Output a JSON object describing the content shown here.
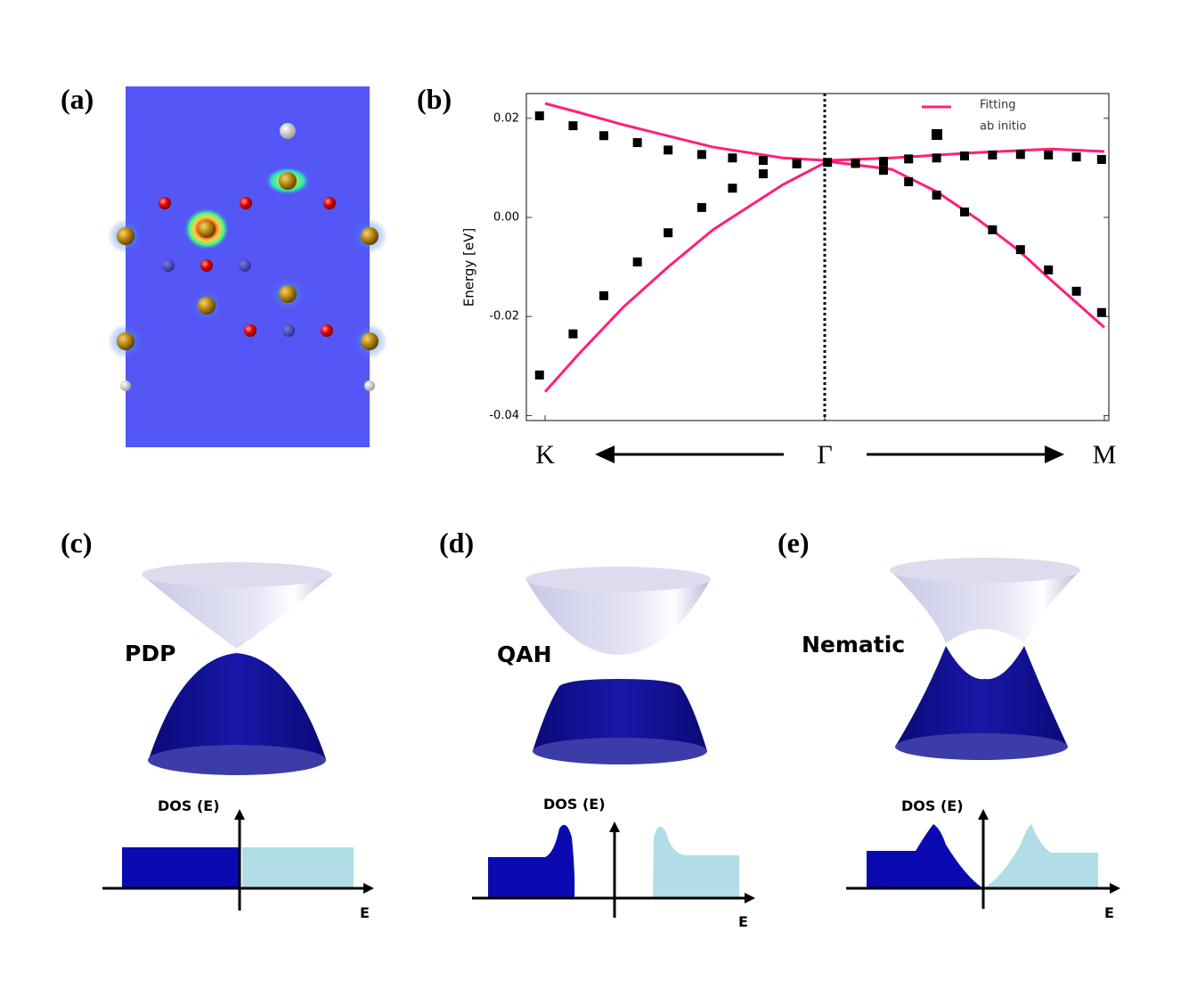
{
  "panels": {
    "a": {
      "label": "(a)"
    },
    "b": {
      "label": "(b)"
    },
    "c": {
      "label": "(c)",
      "phase": "PDP",
      "dos_label": "DOS (E)",
      "axis_label": "E"
    },
    "d": {
      "label": "(d)",
      "phase": "QAH",
      "dos_label": "DOS (E)",
      "axis_label": "E"
    },
    "e": {
      "label": "(e)",
      "phase": "Nematic",
      "dos_label": "DOS (E)",
      "axis_label": "E"
    }
  },
  "chart_data": {
    "type": "line",
    "y_label": "Energy [eV]",
    "xlim": [
      -0.067,
      2.016
    ],
    "ylim": [
      -0.041,
      0.025
    ],
    "xticks": [
      {
        "value": 0,
        "label": "K"
      },
      {
        "value": 1,
        "label": "Γ"
      },
      {
        "value": 2,
        "label": "M"
      }
    ],
    "yticks": [
      0.02,
      {
        "value": 0,
        "label": "0.00"
      },
      -0.02,
      -0.04
    ],
    "legend": "upper right",
    "series": [
      {
        "name": "Fitting",
        "type": "line",
        "color": "#ff1f7a",
        "x": [
          0,
          0.12,
          0.28,
          0.6,
          0.85,
          1.01,
          1.24,
          1.55,
          1.81,
          2.0,
          null,
          0,
          0.12,
          0.28,
          0.44,
          0.6,
          0.85,
          1.01,
          1.24,
          1.4,
          1.55,
          1.69,
          1.81,
          2.0
        ],
        "values": [
          0.023,
          0.0212,
          0.0187,
          0.0142,
          0.012,
          0.0115,
          0.012,
          0.0131,
          0.0138,
          0.0133,
          null,
          -0.0352,
          -0.0276,
          -0.0181,
          -0.01,
          -0.0025,
          0.0066,
          0.0113,
          0.0097,
          0.0052,
          -0.0005,
          -0.0065,
          -0.0127,
          -0.0222
        ]
      },
      {
        "name": "ab initio",
        "type": "scatter",
        "color": "#000000",
        "x": [
          -0.02,
          0.1,
          0.21,
          0.33,
          0.44,
          0.56,
          0.67,
          0.78,
          0.9,
          1.01,
          1.11,
          1.21,
          1.3,
          1.4,
          1.5,
          1.6,
          1.7,
          1.8,
          1.9,
          1.99,
          -0.02,
          0.1,
          0.21,
          0.33,
          0.44,
          0.56,
          0.67,
          0.78,
          0.9,
          1.11,
          1.21,
          1.3,
          1.4,
          1.5,
          1.6,
          1.7,
          1.8,
          1.9,
          1.99
        ],
        "values": [
          0.0205,
          0.0185,
          0.0165,
          0.0151,
          0.0136,
          0.0127,
          0.012,
          0.0115,
          0.0109,
          0.0111,
          0.0109,
          0.0113,
          0.0118,
          0.012,
          0.0124,
          0.0126,
          0.0127,
          0.0126,
          0.0122,
          0.0117,
          -0.0318,
          -0.0235,
          -0.0158,
          -0.009,
          -0.0031,
          0.002,
          0.0059,
          0.0088,
          0.0108,
          0.0109,
          0.0095,
          0.0072,
          0.0045,
          0.0011,
          -0.0025,
          -0.0065,
          -0.0106,
          -0.0149,
          -0.0192
        ]
      }
    ]
  }
}
